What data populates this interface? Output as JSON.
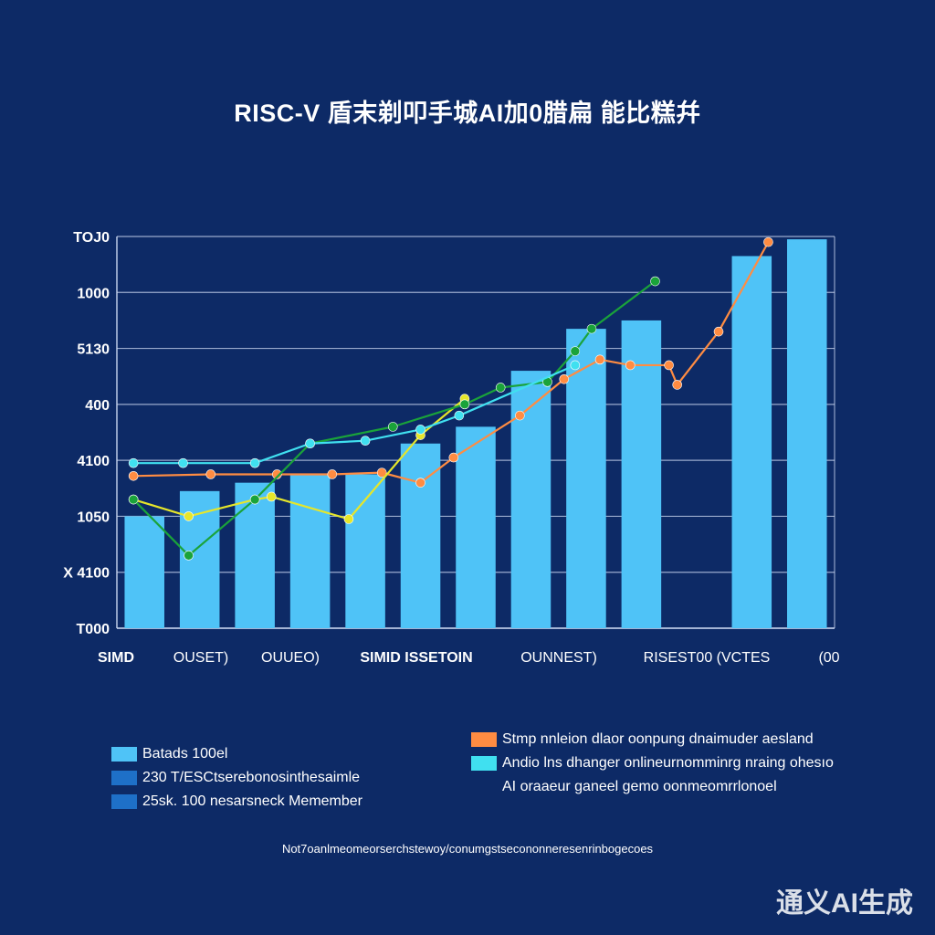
{
  "colors": {
    "background": "#0d2a66",
    "bar": "#4fc3f7",
    "grid": "#c9d6f0",
    "orange": "#ff8c42",
    "yellow": "#e6e62a",
    "green": "#1aa33a",
    "cyan": "#40e0f0"
  },
  "chart_data": {
    "type": "bar",
    "title": "RISC-V 盾末剃叩手城AI加0腊扁 能比糕幷",
    "ytick_labels": [
      "TOJ0",
      "1000",
      "5130",
      "400",
      "4100",
      "1050",
      "X 4100",
      "T000"
    ],
    "xtick_labels": [
      "SIMD",
      "OUSET)",
      "OUUEO)",
      "SIMID ISSETOIN",
      "OUNNEST)",
      "RISEST00 (VCTES",
      "(00"
    ],
    "ylim": [
      0,
      7
    ],
    "grid": true,
    "categories": [
      "1",
      "2",
      "3",
      "4",
      "5",
      "6",
      "7",
      "8",
      "9",
      "10",
      "11",
      "12",
      "13"
    ],
    "bars": [
      2.0,
      2.45,
      2.6,
      2.75,
      2.75,
      3.3,
      3.6,
      4.6,
      5.35,
      5.5,
      0,
      6.65,
      6.95
    ],
    "series": [
      {
        "color": "orange",
        "points": [
          [
            0.3,
            2.72
          ],
          [
            1.7,
            2.75
          ],
          [
            2.9,
            2.75
          ],
          [
            3.9,
            2.75
          ],
          [
            4.8,
            2.78
          ],
          [
            5.5,
            2.6
          ],
          [
            6.1,
            3.05
          ],
          [
            7.3,
            3.8
          ],
          [
            8.1,
            4.45
          ],
          [
            8.75,
            4.8
          ],
          [
            9.3,
            4.7
          ],
          [
            10,
            4.7
          ],
          [
            10.15,
            4.35
          ],
          [
            10.9,
            5.3
          ],
          [
            11.8,
            6.9
          ]
        ]
      },
      {
        "color": "yellow",
        "points": [
          [
            0.3,
            2.3
          ],
          [
            1.3,
            2.0
          ],
          [
            2.5,
            2.3
          ],
          [
            2.8,
            2.35
          ],
          [
            4.2,
            1.95
          ],
          [
            5.5,
            3.45
          ],
          [
            6.3,
            4.1
          ]
        ]
      },
      {
        "color": "green",
        "points": [
          [
            0.3,
            2.3
          ],
          [
            1.3,
            1.3
          ],
          [
            2.5,
            2.3
          ],
          [
            3.5,
            3.3
          ],
          [
            5,
            3.6
          ],
          [
            6.3,
            4.0
          ],
          [
            6.95,
            4.3
          ],
          [
            7.8,
            4.4
          ],
          [
            8.3,
            4.95
          ],
          [
            8.6,
            5.35
          ],
          [
            9.75,
            6.2
          ]
        ]
      },
      {
        "color": "cyan",
        "points": [
          [
            0.3,
            2.95
          ],
          [
            1.2,
            2.95
          ],
          [
            2.5,
            2.95
          ],
          [
            3.5,
            3.3
          ],
          [
            4.5,
            3.35
          ],
          [
            5.5,
            3.55
          ],
          [
            6.2,
            3.8
          ],
          [
            8.3,
            4.7
          ]
        ]
      }
    ],
    "legend": {
      "placement": "bottom",
      "left": [
        {
          "label": "Batads  100el",
          "color": "#4fc3f7"
        },
        {
          "label": "230  T/ESCtserebonosinthesaimle",
          "color": "#1e70c8"
        },
        {
          "label": "25sk.   100  nesarsneck  Memember",
          "color": "#1e70c8"
        }
      ],
      "right": [
        {
          "label": "Stmp  nnleion  dlaor  oonpung  dnaimuder  aesland",
          "color": "#ff8c42"
        },
        {
          "label": "Andio lns  dhanger  onlineurnomminrg  nraing ohesıo",
          "color": "#40e0f0"
        },
        {
          "label": "AI  oraaeur ganeel  gemo  oonmeomrrlonoel",
          "color": null
        }
      ]
    }
  },
  "footnote": "Not7oanlmeomeorserchstewoy/conumgstsecononneresenrinbogecoes",
  "watermark": "通义AI生成"
}
